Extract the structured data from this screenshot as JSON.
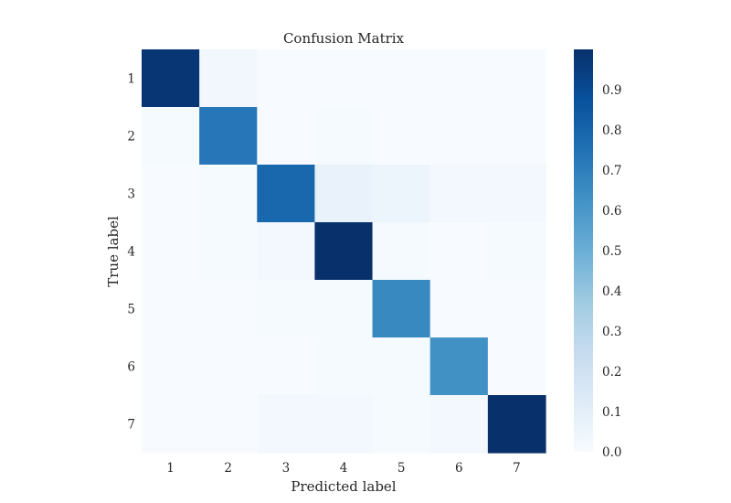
{
  "chart_data": {
    "type": "heatmap",
    "title": "Confusion Matrix",
    "xlabel": "Predicted label",
    "ylabel": "True label",
    "x_categories": [
      "1",
      "2",
      "3",
      "4",
      "5",
      "6",
      "7"
    ],
    "y_categories": [
      "1",
      "2",
      "3",
      "4",
      "5",
      "6",
      "7"
    ],
    "matrix": [
      [
        0.98,
        0.03,
        0.0,
        0.0,
        0.0,
        0.0,
        0.0
      ],
      [
        0.01,
        0.73,
        0.0,
        0.01,
        0.0,
        0.0,
        0.0
      ],
      [
        0.0,
        0.01,
        0.79,
        0.07,
        0.05,
        0.02,
        0.02
      ],
      [
        0.0,
        0.01,
        0.02,
        1.0,
        0.01,
        0.0,
        0.01
      ],
      [
        0.0,
        0.0,
        0.01,
        0.01,
        0.66,
        0.0,
        0.0
      ],
      [
        0.0,
        0.0,
        0.0,
        0.01,
        0.01,
        0.63,
        0.0
      ],
      [
        0.0,
        0.0,
        0.02,
        0.02,
        0.01,
        0.02,
        1.0
      ]
    ],
    "colorbar": {
      "ticks": [
        "0.0",
        "0.1",
        "0.2",
        "0.3",
        "0.4",
        "0.5",
        "0.6",
        "0.7",
        "0.8",
        "0.9"
      ],
      "range": [
        0,
        1.0
      ],
      "colormap": "Blues"
    },
    "grid": false
  }
}
